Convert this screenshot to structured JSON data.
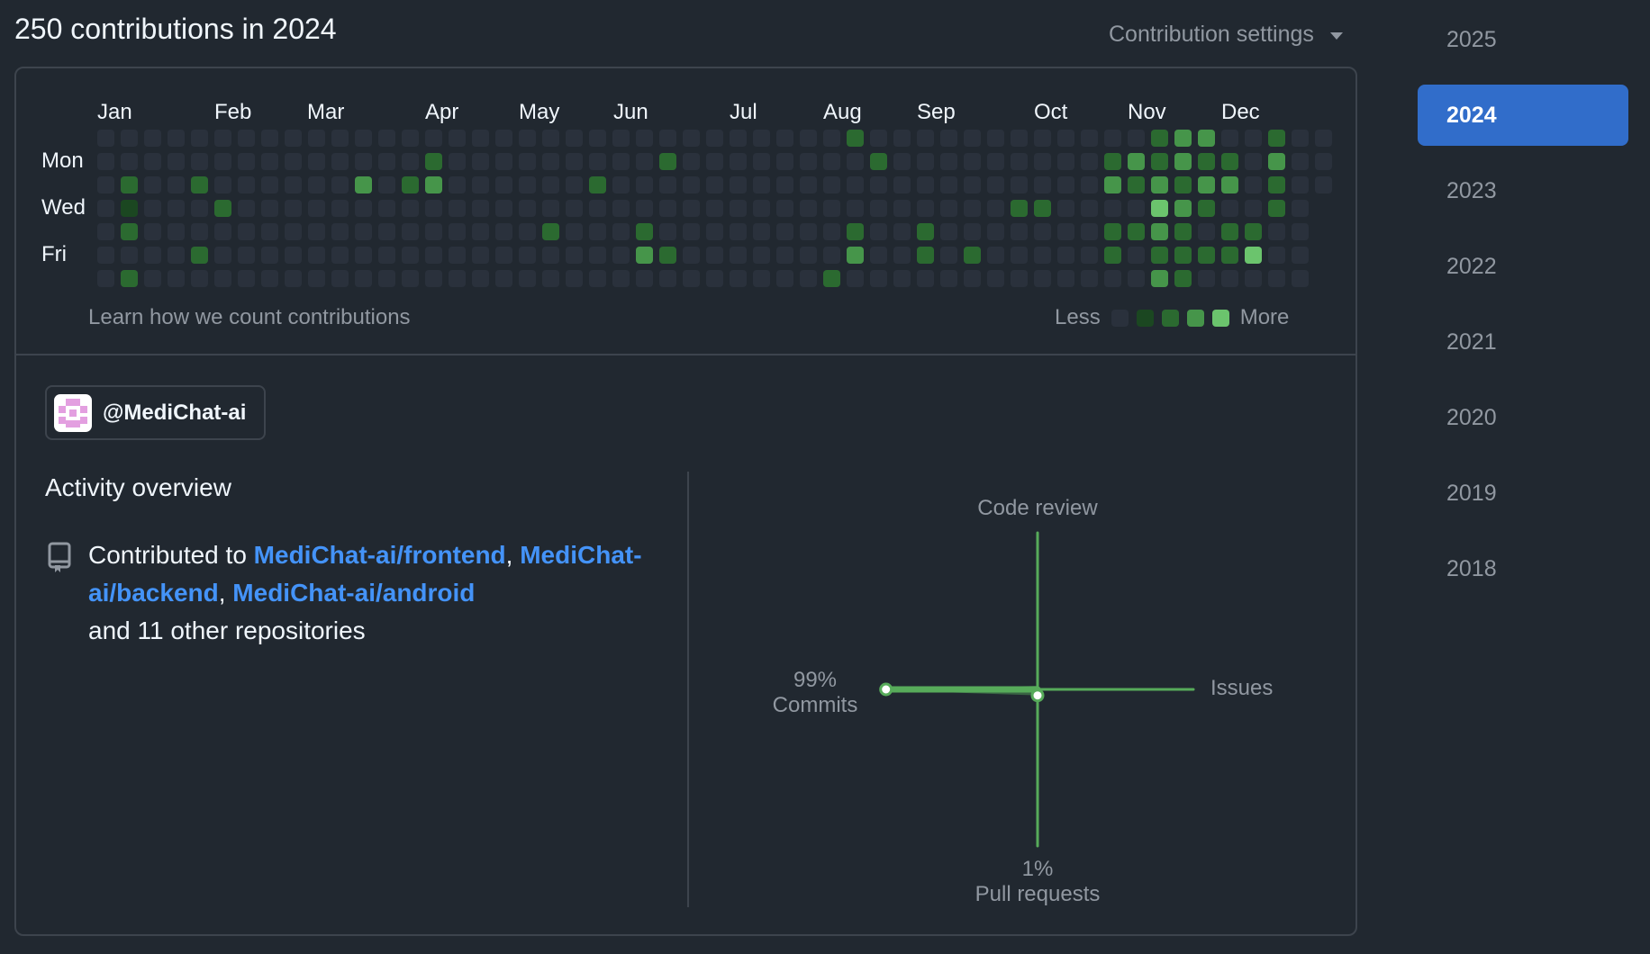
{
  "header": {
    "title": "250 contributions in 2024",
    "settings_label": "Contribution settings"
  },
  "graph": {
    "months": [
      "Jan",
      "Feb",
      "Mar",
      "Apr",
      "May",
      "Jun",
      "Jul",
      "Aug",
      "Sep",
      "Oct",
      "Nov",
      "Dec"
    ],
    "days": [
      "Mon",
      "Wed",
      "Fri"
    ],
    "learn_link": "Learn how we count contributions",
    "legend_less": "Less",
    "legend_more": "More",
    "colors": [
      "#2a313c",
      "#1b4721",
      "#2b6a30",
      "#46954a",
      "#6bc46d"
    ],
    "contributions": [
      {
        "week": 1,
        "day": 2,
        "level": 2
      },
      {
        "week": 1,
        "day": 3,
        "level": 1
      },
      {
        "week": 1,
        "day": 4,
        "level": 2
      },
      {
        "week": 1,
        "day": 6,
        "level": 2
      },
      {
        "week": 4,
        "day": 2,
        "level": 2
      },
      {
        "week": 4,
        "day": 5,
        "level": 2
      },
      {
        "week": 5,
        "day": 3,
        "level": 2
      },
      {
        "week": 11,
        "day": 2,
        "level": 3
      },
      {
        "week": 13,
        "day": 2,
        "level": 2
      },
      {
        "week": 14,
        "day": 1,
        "level": 2
      },
      {
        "week": 14,
        "day": 2,
        "level": 3
      },
      {
        "week": 19,
        "day": 4,
        "level": 2
      },
      {
        "week": 21,
        "day": 2,
        "level": 2
      },
      {
        "week": 23,
        "day": 4,
        "level": 2
      },
      {
        "week": 23,
        "day": 5,
        "level": 3
      },
      {
        "week": 24,
        "day": 1,
        "level": 2
      },
      {
        "week": 24,
        "day": 5,
        "level": 2
      },
      {
        "week": 31,
        "day": 6,
        "level": 2
      },
      {
        "week": 32,
        "day": 0,
        "level": 2
      },
      {
        "week": 32,
        "day": 4,
        "level": 2
      },
      {
        "week": 32,
        "day": 5,
        "level": 3
      },
      {
        "week": 33,
        "day": 1,
        "level": 2
      },
      {
        "week": 35,
        "day": 4,
        "level": 2
      },
      {
        "week": 35,
        "day": 5,
        "level": 2
      },
      {
        "week": 37,
        "day": 5,
        "level": 2
      },
      {
        "week": 39,
        "day": 3,
        "level": 2
      },
      {
        "week": 40,
        "day": 3,
        "level": 2
      },
      {
        "week": 43,
        "day": 1,
        "level": 2
      },
      {
        "week": 43,
        "day": 2,
        "level": 3
      },
      {
        "week": 43,
        "day": 4,
        "level": 2
      },
      {
        "week": 43,
        "day": 5,
        "level": 2
      },
      {
        "week": 44,
        "day": 1,
        "level": 3
      },
      {
        "week": 44,
        "day": 2,
        "level": 2
      },
      {
        "week": 44,
        "day": 4,
        "level": 2
      },
      {
        "week": 45,
        "day": 0,
        "level": 2
      },
      {
        "week": 45,
        "day": 1,
        "level": 2
      },
      {
        "week": 45,
        "day": 2,
        "level": 3
      },
      {
        "week": 45,
        "day": 3,
        "level": 4
      },
      {
        "week": 45,
        "day": 4,
        "level": 3
      },
      {
        "week": 45,
        "day": 5,
        "level": 2
      },
      {
        "week": 45,
        "day": 6,
        "level": 3
      },
      {
        "week": 46,
        "day": 0,
        "level": 3
      },
      {
        "week": 46,
        "day": 1,
        "level": 3
      },
      {
        "week": 46,
        "day": 2,
        "level": 2
      },
      {
        "week": 46,
        "day": 3,
        "level": 3
      },
      {
        "week": 46,
        "day": 4,
        "level": 2
      },
      {
        "week": 46,
        "day": 5,
        "level": 2
      },
      {
        "week": 46,
        "day": 6,
        "level": 2
      },
      {
        "week": 47,
        "day": 0,
        "level": 3
      },
      {
        "week": 47,
        "day": 1,
        "level": 2
      },
      {
        "week": 47,
        "day": 2,
        "level": 3
      },
      {
        "week": 47,
        "day": 3,
        "level": 2
      },
      {
        "week": 47,
        "day": 5,
        "level": 2
      },
      {
        "week": 48,
        "day": 1,
        "level": 2
      },
      {
        "week": 48,
        "day": 2,
        "level": 3
      },
      {
        "week": 48,
        "day": 4,
        "level": 2
      },
      {
        "week": 48,
        "day": 5,
        "level": 2
      },
      {
        "week": 49,
        "day": 4,
        "level": 2
      },
      {
        "week": 49,
        "day": 5,
        "level": 4
      },
      {
        "week": 50,
        "day": 0,
        "level": 2
      },
      {
        "week": 50,
        "day": 1,
        "level": 3
      },
      {
        "week": 50,
        "day": 2,
        "level": 2
      },
      {
        "week": 50,
        "day": 3,
        "level": 2
      }
    ]
  },
  "org": {
    "name": "@MediChat-ai"
  },
  "activity": {
    "title": "Activity overview",
    "prefix": "Contributed to ",
    "repos": [
      "MediChat-ai/frontend",
      "MediChat-ai/backend",
      "MediChat-ai/android"
    ],
    "suffix": "and 11 other repositories",
    "code_review": "Code review",
    "issues": "Issues",
    "commits_pct": "99%",
    "commits": "Commits",
    "pr_pct": "1%",
    "pull_requests": "Pull requests",
    "commits_value": 99,
    "pr_value": 1,
    "line_color": "#57ab5a"
  },
  "years": [
    "2025",
    "2024",
    "2023",
    "2022",
    "2021",
    "2020",
    "2019",
    "2018"
  ],
  "active_year": "2024"
}
